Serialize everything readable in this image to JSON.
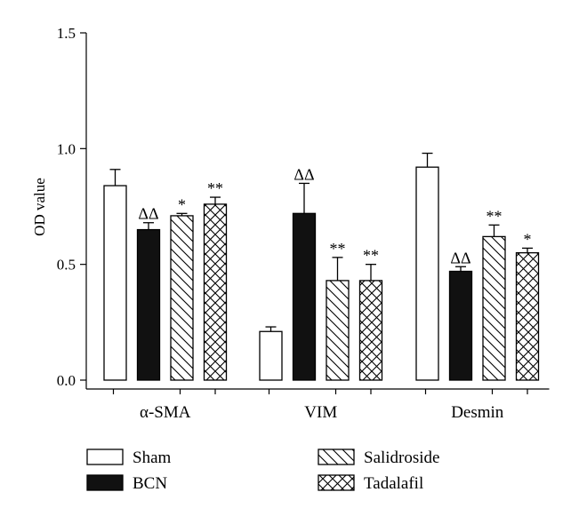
{
  "chart_data": {
    "type": "bar",
    "ylabel": "OD value",
    "ylim": [
      0,
      1.5
    ],
    "yticks": [
      "0.0",
      "0.5",
      "1.0",
      "1.5"
    ],
    "categories": [
      "α-SMA",
      "VIM",
      "Desmin"
    ],
    "series": [
      {
        "name": "Sham",
        "fill": "white",
        "values": [
          0.84,
          0.21,
          0.92
        ],
        "errors": [
          0.07,
          0.02,
          0.06
        ],
        "marks": [
          "",
          "",
          ""
        ]
      },
      {
        "name": "BCN",
        "fill": "black",
        "values": [
          0.65,
          0.72,
          0.47
        ],
        "errors": [
          0.03,
          0.13,
          0.02
        ],
        "marks": [
          "ΔΔ",
          "ΔΔ",
          "ΔΔ"
        ]
      },
      {
        "name": "Salidroside",
        "fill": "diagonal-hatch",
        "values": [
          0.71,
          0.43,
          0.62
        ],
        "errors": [
          0.01,
          0.1,
          0.05
        ],
        "marks": [
          "*",
          "**",
          "**"
        ]
      },
      {
        "name": "Tadalafil",
        "fill": "cross-hatch",
        "values": [
          0.76,
          0.43,
          0.55
        ],
        "errors": [
          0.03,
          0.07,
          0.02
        ],
        "marks": [
          "**",
          "**",
          "*"
        ]
      }
    ],
    "grid": false,
    "legend_position": "bottom"
  }
}
